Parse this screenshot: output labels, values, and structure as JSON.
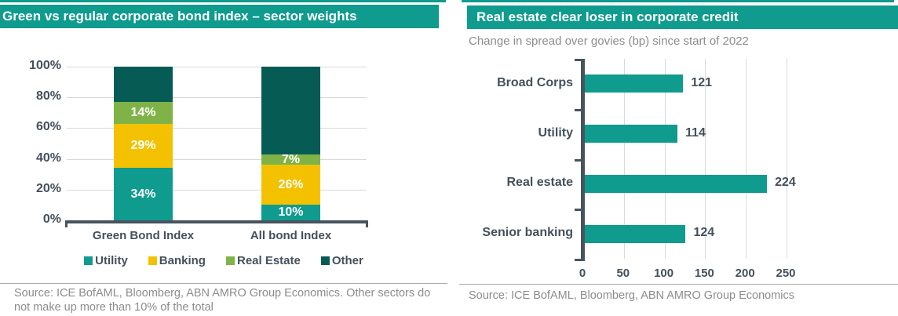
{
  "colors": {
    "teal": "#0F9B8D",
    "yellow": "#F4C100",
    "light_green": "#7FB347",
    "dark_teal": "#065B55",
    "axis_text": "#44505C",
    "source_text": "#8C8C8C"
  },
  "left_panel": {
    "title": "Green vs regular corporate bond index – sector weights",
    "source": "Source: ICE BofAML, Bloomberg, ABN AMRO Group Economics. Other sectors do not make up more than 10% of the total"
  },
  "right_panel": {
    "title": "Real estate clear loser in corporate credit",
    "subtitle": "Change in spread over govies (bp) since start of 2022",
    "source": "Source: ICE BofAML, Bloomberg, ABN AMRO Group Economics"
  },
  "chart_data": [
    {
      "type": "bar",
      "subtype": "stacked-vertical",
      "title": "Green vs regular corporate bond index – sector weights",
      "categories": [
        "Green Bond Index",
        "All bond Index"
      ],
      "series": [
        {
          "name": "Utility",
          "color": "#0F9B8D",
          "values": [
            34,
            10
          ],
          "labels": [
            "34%",
            "10%"
          ]
        },
        {
          "name": "Banking",
          "color": "#F4C100",
          "values": [
            29,
            26
          ],
          "labels": [
            "29%",
            "26%"
          ]
        },
        {
          "name": "Real Estate",
          "color": "#7FB347",
          "values": [
            14,
            7
          ],
          "labels": [
            "14%",
            "7%"
          ]
        },
        {
          "name": "Other",
          "color": "#065B55",
          "values": [
            23,
            57
          ],
          "labels": [
            "",
            ""
          ]
        }
      ],
      "y_ticks": [
        "0%",
        "20%",
        "40%",
        "60%",
        "80%",
        "100%"
      ],
      "ylim": [
        0,
        100
      ],
      "grid": "horizontal",
      "legend_position": "bottom"
    },
    {
      "type": "bar",
      "subtype": "horizontal",
      "title": "Real estate clear loser in corporate credit",
      "xlabel": "Change in spread over govies (bp) since start of 2022",
      "categories": [
        "Broad Corps",
        "Utility",
        "Real estate",
        "Senior banking"
      ],
      "values": [
        121,
        114,
        224,
        124
      ],
      "bar_color": "#0F9B8D",
      "x_ticks": [
        0,
        50,
        100,
        150,
        200,
        250
      ],
      "xlim": [
        0,
        267
      ],
      "grid": "vertical"
    }
  ]
}
